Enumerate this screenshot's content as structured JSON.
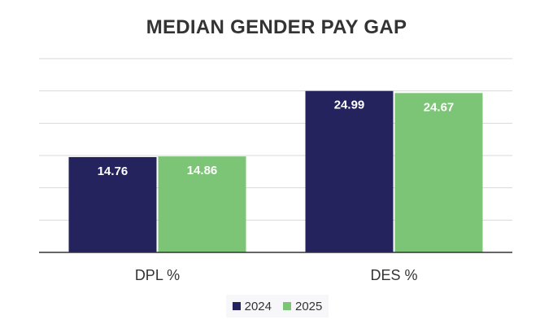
{
  "chart_data": {
    "type": "bar",
    "title": "MEDIAN GENDER PAY GAP",
    "categories": [
      "DPL %",
      "DES %"
    ],
    "series": [
      {
        "name": "2024",
        "values": [
          14.76,
          24.99
        ],
        "color": "#24235e"
      },
      {
        "name": "2025",
        "values": [
          14.86,
          24.67
        ],
        "color": "#7cc576"
      }
    ],
    "xlabel": "",
    "ylabel": "",
    "ylim": [
      0,
      30
    ],
    "yticks": [
      5,
      10,
      15,
      20,
      25,
      30
    ],
    "grid": true,
    "legend": "bottom-center"
  }
}
